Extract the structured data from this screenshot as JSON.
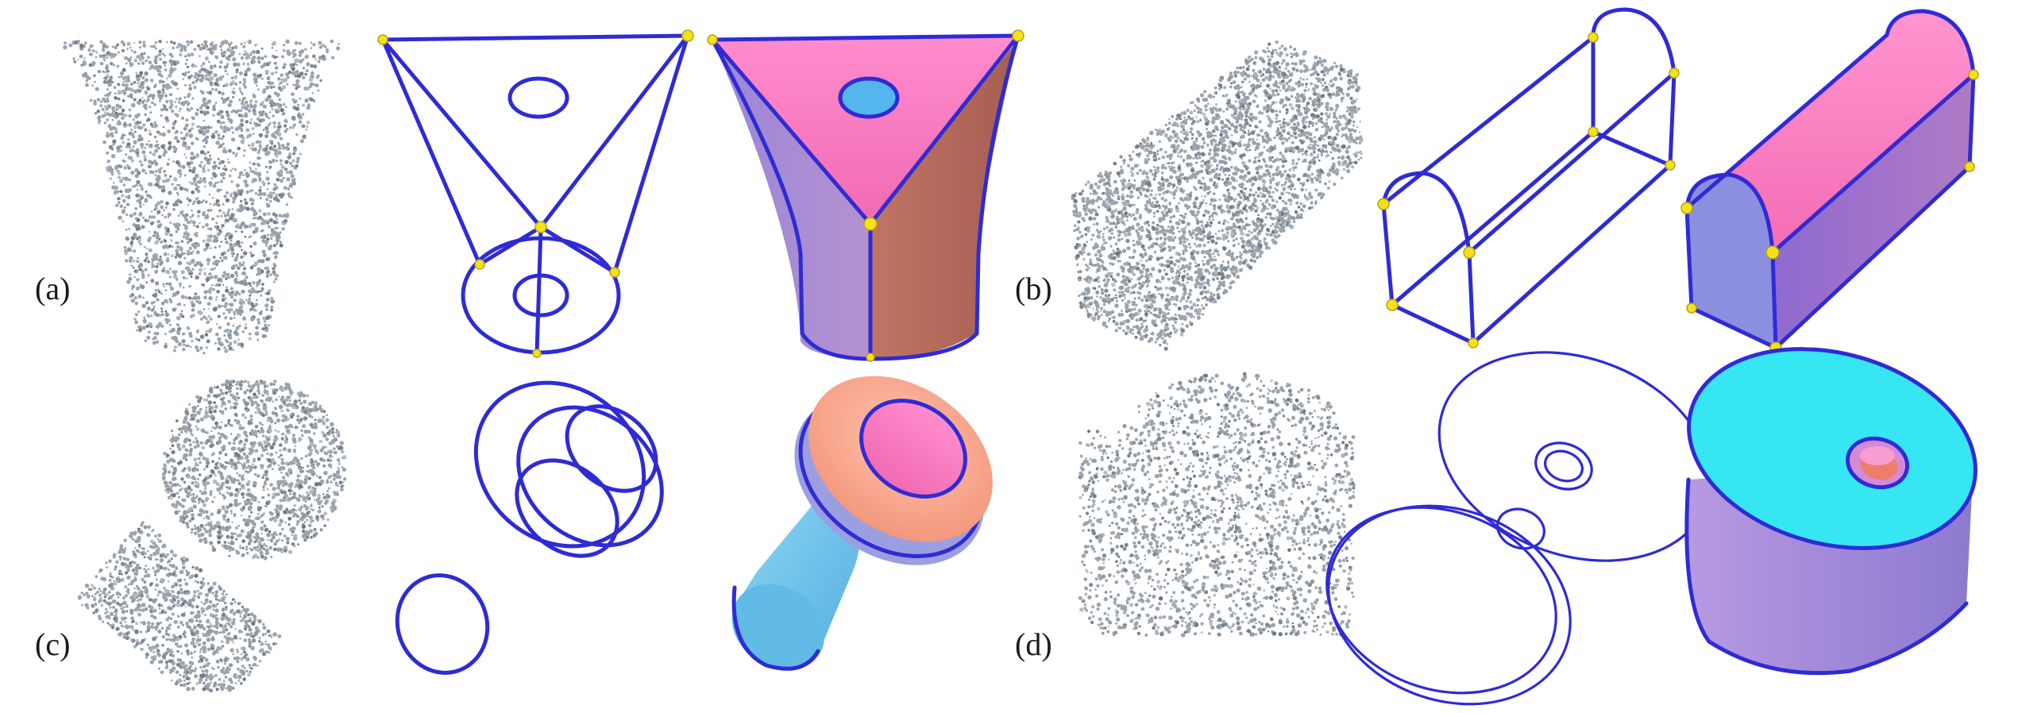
{
  "figure": {
    "labels": [
      "(a)",
      "(b)",
      "(c)",
      "(d)"
    ],
    "colors": {
      "wire": "#2f2bd4",
      "vertex": "#f4e11c",
      "point": "#9aa4ad",
      "pink": "#ff7fc3",
      "lavender": "#a98ad6",
      "terracotta": "#b86c5c",
      "sky": "#79c9ec",
      "salmon": "#f9a98f",
      "cyan": "#3ce8f2"
    },
    "columns": [
      "point-cloud",
      "wireframe",
      "reconstructed-surface"
    ]
  }
}
